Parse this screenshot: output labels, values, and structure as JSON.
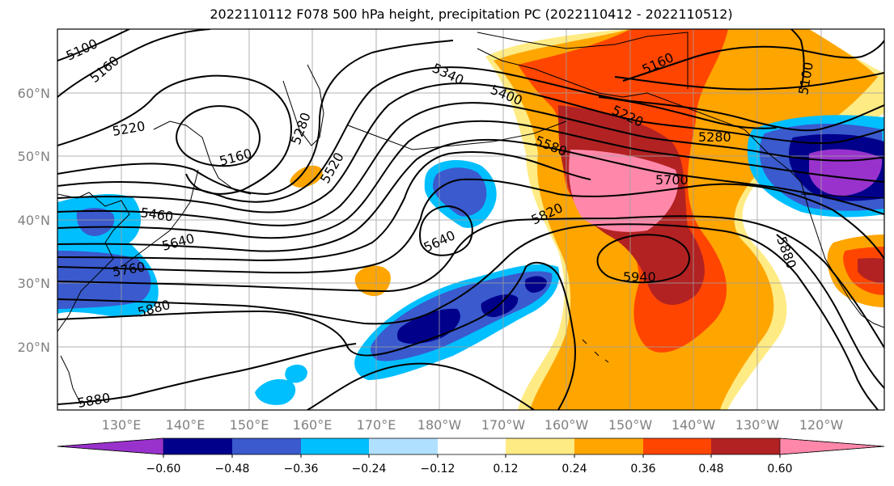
{
  "title": "2022110112 F078 500 hPa height, precipitation PC (2022110412 - 2022110512)",
  "lat_labels": [
    "60°N",
    "50°N",
    "40°N",
    "30°N",
    "20°N"
  ],
  "lon_labels": [
    "130°E",
    "140°E",
    "150°E",
    "160°E",
    "170°E",
    "180°W",
    "170°W",
    "160°W",
    "150°W",
    "140°W",
    "130°W",
    "120°W"
  ],
  "contour_labels": [
    "5100",
    "5160",
    "5220",
    "5160",
    "5280",
    "5340",
    "5400",
    "5520",
    "5580",
    "5460",
    "5640",
    "5760",
    "5880",
    "5880",
    "5640",
    "5820",
    "5700",
    "5940",
    "5280",
    "5220",
    "5160",
    "5100",
    "5880"
  ],
  "colorbar": {
    "ticks": [
      "−0.60",
      "−0.48",
      "−0.36",
      "−0.24",
      "−0.12",
      "0.12",
      "0.24",
      "0.36",
      "0.48",
      "0.60"
    ],
    "colors": [
      "#9932cc",
      "#00008b",
      "#3a5acd",
      "#00bfff",
      "#b0e0ff",
      "#ffffff",
      "#ffeb84",
      "#ffa500",
      "#ff4500",
      "#b22222",
      "#ff88aa"
    ]
  },
  "colors": {
    "grid": "#a0a0a0",
    "axis_label": "#808080",
    "contour": "#000000"
  }
}
